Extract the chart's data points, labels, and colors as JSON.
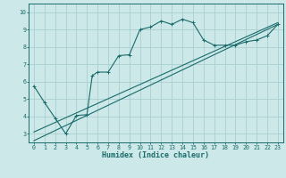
{
  "bg_color": "#cce8e8",
  "line_color": "#1a6b6b",
  "grid_color": "#aad0d0",
  "xlabel": "Humidex (Indice chaleur)",
  "xlabel_fontsize": 6.0,
  "xlim": [
    -0.5,
    23.5
  ],
  "ylim": [
    2.5,
    10.5
  ],
  "yticks": [
    3,
    4,
    5,
    6,
    7,
    8,
    9,
    10
  ],
  "xticks": [
    0,
    1,
    2,
    3,
    4,
    5,
    6,
    7,
    8,
    9,
    10,
    11,
    12,
    13,
    14,
    15,
    16,
    17,
    18,
    19,
    20,
    21,
    22,
    23
  ],
  "curve1_x": [
    0,
    1,
    2,
    3,
    4,
    5,
    5.5,
    6,
    7,
    8,
    9,
    10,
    11,
    12,
    13,
    14,
    15,
    16,
    17,
    18,
    19,
    20,
    21,
    22,
    23
  ],
  "curve1_y": [
    5.75,
    4.8,
    3.9,
    3.0,
    4.05,
    4.1,
    6.35,
    6.55,
    6.55,
    7.5,
    7.55,
    9.0,
    9.15,
    9.5,
    9.3,
    9.6,
    9.4,
    8.4,
    8.1,
    8.1,
    8.1,
    8.3,
    8.4,
    8.65,
    9.3
  ],
  "line1_x": [
    0,
    23
  ],
  "line1_y": [
    2.6,
    9.3
  ],
  "line2_x": [
    0,
    23
  ],
  "line2_y": [
    3.1,
    9.4
  ],
  "tick_fontsize": 4.8,
  "marker_size": 2.5,
  "line_width": 0.8
}
